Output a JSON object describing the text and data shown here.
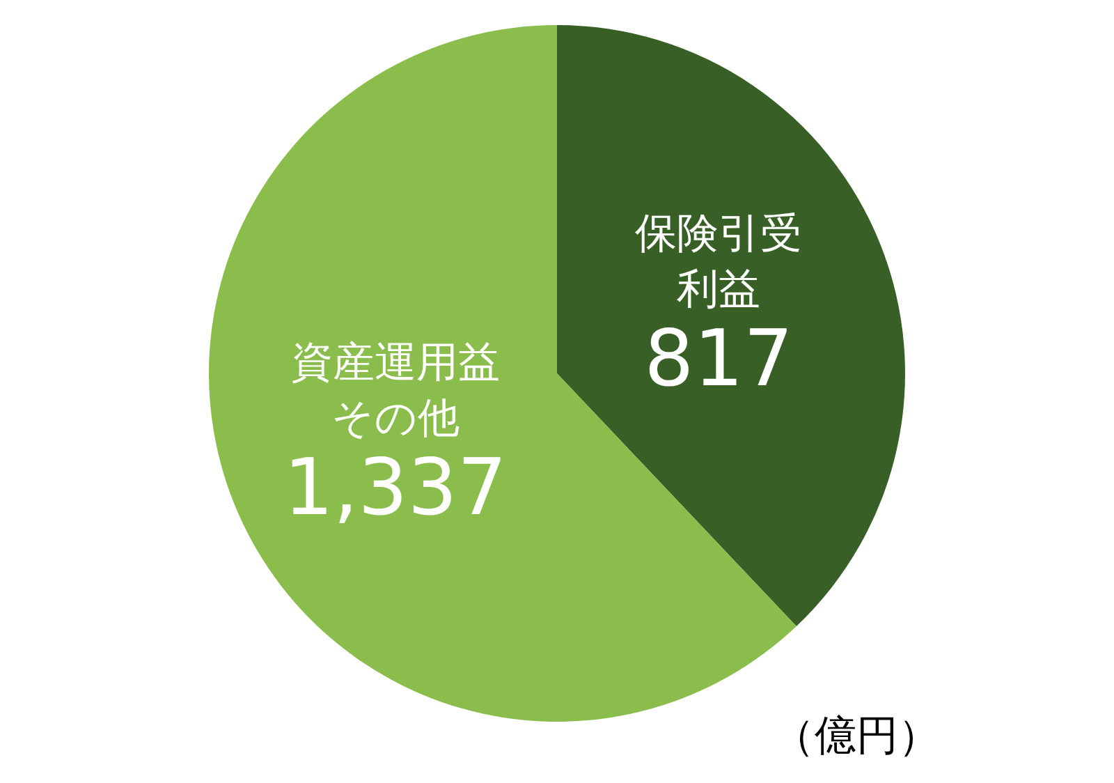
{
  "chart_data": {
    "type": "pie",
    "categories": [
      "保険引受利益",
      "資産運用益その他"
    ],
    "values": [
      817,
      1337
    ],
    "colors": [
      "#375f26",
      "#8bbd4d"
    ],
    "value_labels": [
      "817",
      "1,337"
    ],
    "legend": false,
    "annotations": [
      "（億円）"
    ]
  }
}
